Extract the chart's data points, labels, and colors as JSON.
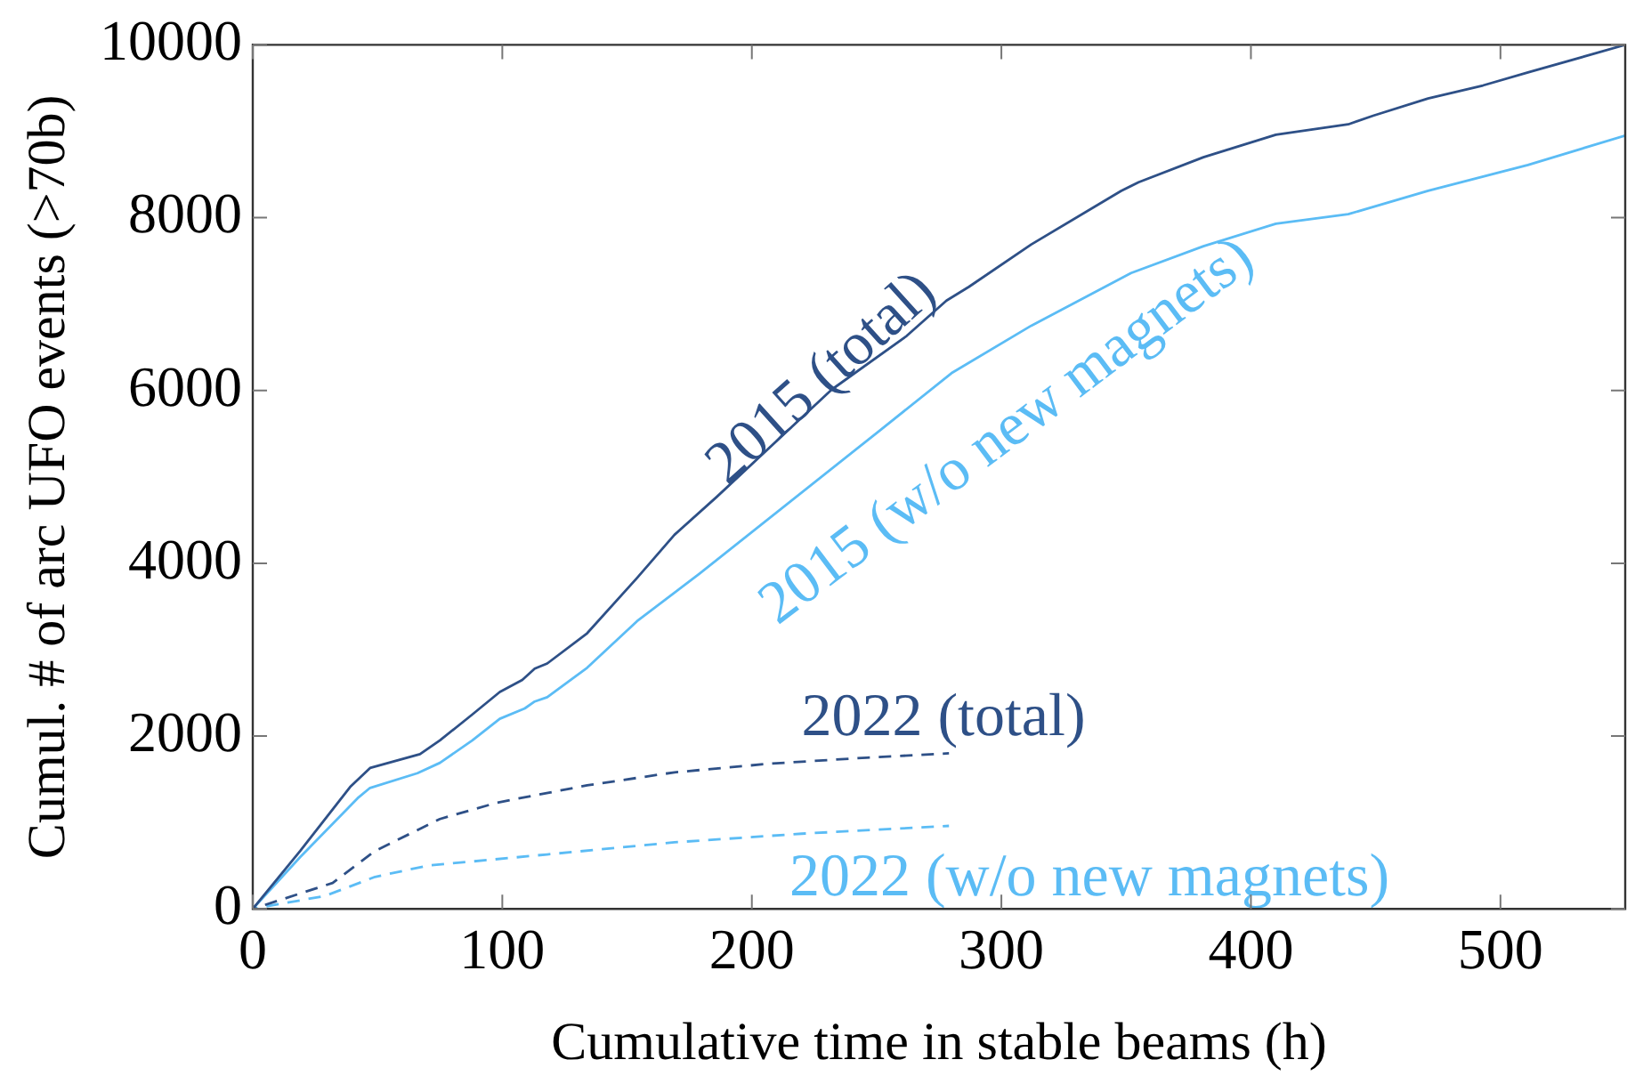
{
  "chart_data": {
    "type": "line",
    "xlabel": "Cumulative time in stable beams (h)",
    "ylabel": "Cumul. # of arc UFO events (>70b)",
    "xlim": [
      0,
      550
    ],
    "xticks": [
      0,
      100,
      200,
      300,
      400,
      500
    ],
    "ylim": [
      0,
      10000
    ],
    "yticks": [
      0,
      2000,
      4000,
      6000,
      8000,
      10000
    ],
    "legend": false,
    "grid": false,
    "marker": "none",
    "series": [
      {
        "name": "2015 (total)",
        "color": "#2e5087",
        "line_style": "solid",
        "x": [
          0,
          19,
          39,
          47,
          67,
          75,
          88,
          99,
          108,
          113,
          118,
          134,
          154,
          169,
          186,
          232,
          262,
          278,
          287,
          312,
          348,
          355,
          381,
          410,
          439,
          449,
          471,
          493,
          511,
          550
        ],
        "values": [
          0,
          670,
          1410,
          1630,
          1790,
          1950,
          2250,
          2510,
          2650,
          2780,
          2840,
          3190,
          3830,
          4330,
          4770,
          6010,
          6630,
          7040,
          7200,
          7690,
          8310,
          8410,
          8700,
          8960,
          9080,
          9180,
          9380,
          9530,
          9680,
          10000
        ]
      },
      {
        "name": "2015 (w/o new magnets)",
        "color": "#5bbcf5",
        "line_style": "solid",
        "x": [
          0,
          19,
          42,
          47,
          66,
          75,
          88,
          99,
          109,
          113,
          118,
          134,
          154,
          179,
          251,
          280,
          312,
          352,
          381,
          410,
          439,
          471,
          511,
          550
        ],
        "values": [
          0,
          600,
          1280,
          1400,
          1570,
          1690,
          1950,
          2200,
          2320,
          2400,
          2450,
          2790,
          3330,
          3880,
          5530,
          6200,
          6750,
          7360,
          7670,
          7930,
          8040,
          8310,
          8610,
          8950
        ]
      },
      {
        "name": "2022 (total)",
        "color": "#2e5087",
        "line_style": "dashed",
        "x": [
          0,
          32,
          49,
          75,
          98,
          134,
          169,
          207,
          246,
          279
        ],
        "values": [
          0,
          300,
          670,
          1040,
          1230,
          1430,
          1580,
          1680,
          1750,
          1800
        ]
      },
      {
        "name": "2022 (w/o new magnets)",
        "color": "#5bbcf5",
        "line_style": "dashed",
        "x": [
          0,
          29,
          49,
          70,
          118,
          169,
          220,
          279
        ],
        "values": [
          0,
          150,
          370,
          500,
          630,
          770,
          870,
          960
        ]
      }
    ]
  }
}
